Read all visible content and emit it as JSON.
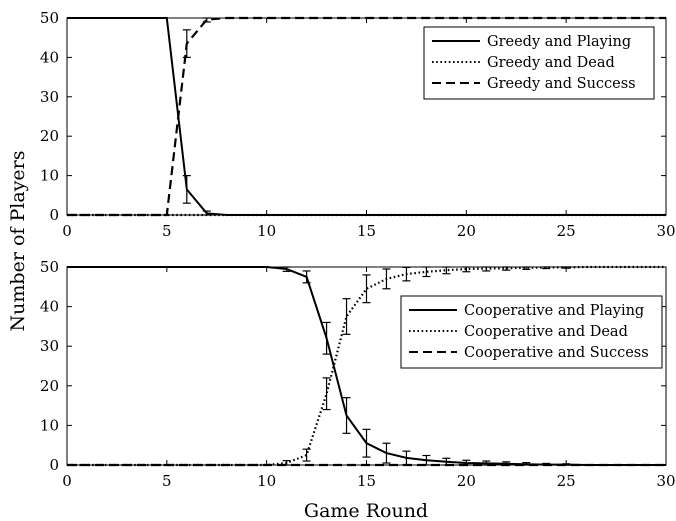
{
  "figure": {
    "ylabel": "Number of Players",
    "xlabel": "Game Round"
  },
  "chart_data": [
    {
      "type": "line",
      "title": "",
      "xlabel": "",
      "ylabel": "Number of Players",
      "xlim": [
        0,
        30
      ],
      "ylim": [
        0,
        50
      ],
      "xticks": [
        "0",
        "5",
        "10",
        "15",
        "20",
        "25",
        "30"
      ],
      "yticks": [
        "0",
        "10",
        "20",
        "30",
        "40",
        "50"
      ],
      "grid": false,
      "legend_position": "top-right",
      "series": [
        {
          "name": "Greedy and Playing",
          "style": "solid",
          "x": [
            0,
            1,
            2,
            3,
            4,
            5,
            6,
            7,
            8,
            9,
            10,
            11,
            12,
            13,
            14,
            15,
            16,
            17,
            18,
            19,
            20,
            21,
            22,
            23,
            24,
            25,
            26,
            27,
            28,
            29,
            30
          ],
          "y": [
            50,
            50,
            50,
            50,
            50,
            50,
            6.5,
            0.4,
            0,
            0,
            0,
            0,
            0,
            0,
            0,
            0,
            0,
            0,
            0,
            0,
            0,
            0,
            0,
            0,
            0,
            0,
            0,
            0,
            0,
            0,
            0
          ],
          "err": [
            0,
            0,
            0,
            0,
            0,
            0,
            3.5,
            0.6,
            0,
            0,
            0,
            0,
            0,
            0,
            0,
            0,
            0,
            0,
            0,
            0,
            0,
            0,
            0,
            0,
            0,
            0,
            0,
            0,
            0,
            0,
            0
          ]
        },
        {
          "name": "Greedy and Dead",
          "style": "dotted",
          "x": [
            0,
            1,
            2,
            3,
            4,
            5,
            6,
            7,
            8,
            9,
            10,
            11,
            12,
            13,
            14,
            15,
            16,
            17,
            18,
            19,
            20,
            21,
            22,
            23,
            24,
            25,
            26,
            27,
            28,
            29,
            30
          ],
          "y": [
            0,
            0,
            0,
            0,
            0,
            0,
            0,
            0,
            0,
            0,
            0,
            0,
            0,
            0,
            0,
            0,
            0,
            0,
            0,
            0,
            0,
            0,
            0,
            0,
            0,
            0,
            0,
            0,
            0,
            0,
            0
          ],
          "err": []
        },
        {
          "name": "Greedy and Success",
          "style": "dashed",
          "x": [
            0,
            1,
            2,
            3,
            4,
            5,
            6,
            7,
            8,
            9,
            10,
            11,
            12,
            13,
            14,
            15,
            16,
            17,
            18,
            19,
            20,
            21,
            22,
            23,
            24,
            25,
            26,
            27,
            28,
            29,
            30
          ],
          "y": [
            0,
            0,
            0,
            0,
            0,
            0,
            43.5,
            49.6,
            50,
            50,
            50,
            50,
            50,
            50,
            50,
            50,
            50,
            50,
            50,
            50,
            50,
            50,
            50,
            50,
            50,
            50,
            50,
            50,
            50,
            50,
            50
          ],
          "err": [
            0,
            0,
            0,
            0,
            0,
            0,
            3.5,
            0.6,
            0,
            0,
            0,
            0,
            0,
            0,
            0,
            0,
            0,
            0,
            0,
            0,
            0,
            0,
            0,
            0,
            0,
            0,
            0,
            0,
            0,
            0,
            0
          ]
        }
      ]
    },
    {
      "type": "line",
      "title": "",
      "xlabel": "Game Round",
      "ylabel": "Number of Players",
      "xlim": [
        0,
        30
      ],
      "ylim": [
        0,
        50
      ],
      "xticks": [
        "0",
        "5",
        "10",
        "15",
        "20",
        "25",
        "30"
      ],
      "yticks": [
        "0",
        "10",
        "20",
        "30",
        "40",
        "50"
      ],
      "grid": false,
      "legend_position": "right",
      "series": [
        {
          "name": "Cooperative and Playing",
          "style": "solid",
          "x": [
            0,
            1,
            2,
            3,
            4,
            5,
            6,
            7,
            8,
            9,
            10,
            11,
            12,
            13,
            14,
            15,
            16,
            17,
            18,
            19,
            20,
            21,
            22,
            23,
            24,
            25,
            26,
            27,
            28,
            29,
            30
          ],
          "y": [
            50,
            50,
            50,
            50,
            50,
            50,
            50,
            50,
            50,
            50,
            50,
            49.5,
            47.5,
            32,
            12.5,
            5.5,
            3,
            1.8,
            1.2,
            0.8,
            0.5,
            0.4,
            0.3,
            0.2,
            0.1,
            0.1,
            0,
            0,
            0,
            0,
            0
          ],
          "err": [
            0,
            0,
            0,
            0,
            0,
            0,
            0,
            0,
            0,
            0,
            0,
            0.6,
            1.5,
            4,
            4.5,
            3.5,
            2.5,
            1.7,
            1.2,
            0.9,
            0.7,
            0.6,
            0.5,
            0.4,
            0.3,
            0.2,
            0,
            0,
            0,
            0,
            0
          ]
        },
        {
          "name": "Cooperative and Dead",
          "style": "dotted",
          "x": [
            0,
            1,
            2,
            3,
            4,
            5,
            6,
            7,
            8,
            9,
            10,
            11,
            12,
            13,
            14,
            15,
            16,
            17,
            18,
            19,
            20,
            21,
            22,
            23,
            24,
            25,
            26,
            27,
            28,
            29,
            30
          ],
          "y": [
            0,
            0,
            0,
            0,
            0,
            0,
            0,
            0,
            0,
            0,
            0,
            0.5,
            2.5,
            18,
            37.5,
            44.5,
            47,
            48.2,
            48.8,
            49.2,
            49.5,
            49.6,
            49.7,
            49.8,
            49.9,
            49.9,
            50,
            50,
            50,
            50,
            50
          ],
          "err": [
            0,
            0,
            0,
            0,
            0,
            0,
            0,
            0,
            0,
            0,
            0,
            0.6,
            1.5,
            4,
            4.5,
            3.5,
            2.5,
            1.7,
            1.2,
            0.9,
            0.7,
            0.6,
            0.5,
            0.4,
            0.3,
            0.2,
            0,
            0,
            0,
            0,
            0
          ]
        },
        {
          "name": "Cooperative and Success",
          "style": "dashed",
          "x": [
            0,
            1,
            2,
            3,
            4,
            5,
            6,
            7,
            8,
            9,
            10,
            11,
            12,
            13,
            14,
            15,
            16,
            17,
            18,
            19,
            20,
            21,
            22,
            23,
            24,
            25,
            26,
            27,
            28,
            29,
            30
          ],
          "y": [
            0,
            0,
            0,
            0,
            0,
            0,
            0,
            0,
            0,
            0,
            0,
            0,
            0,
            0,
            0,
            0,
            0,
            0,
            0,
            0,
            0,
            0,
            0,
            0,
            0,
            0,
            0,
            0,
            0,
            0,
            0
          ],
          "err": []
        }
      ]
    }
  ]
}
